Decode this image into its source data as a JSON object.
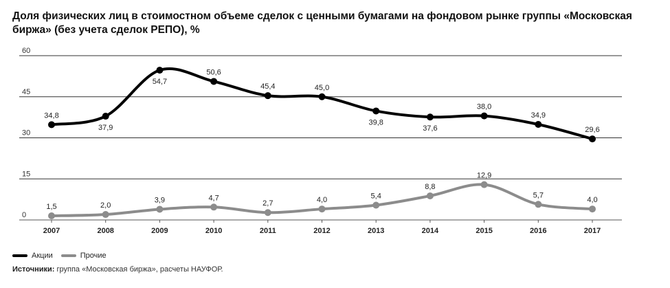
{
  "chart_data": {
    "type": "line",
    "title": "Доля физических лиц в стоимостном объеме сделок с ценными бумагами на фондовом рынке группы «Московская биржа» (без учета сделок РЕПО), %",
    "x": [
      "2007",
      "2008",
      "2009",
      "2010",
      "2011",
      "2012",
      "2013",
      "2014",
      "2015",
      "2016",
      "2017"
    ],
    "ylim": [
      0,
      60
    ],
    "yticks": [
      0,
      15,
      30,
      45,
      60
    ],
    "grid": true,
    "legend_position": "bottom-left",
    "series": [
      {
        "name": "Акции",
        "color": "#000000",
        "values": [
          34.8,
          37.9,
          54.7,
          50.6,
          45.4,
          45.0,
          39.8,
          37.6,
          38.0,
          34.9,
          29.6
        ],
        "labels": [
          "34,8",
          "37,9",
          "54,7",
          "50,6",
          "45,4",
          "45,0",
          "39,8",
          "37,6",
          "38,0",
          "34,9",
          "29,6"
        ]
      },
      {
        "name": "Прочие",
        "color": "#8c8c8c",
        "values": [
          1.5,
          2.0,
          3.9,
          4.7,
          2.7,
          4.0,
          5.4,
          8.8,
          12.9,
          5.7,
          4.0
        ],
        "labels": [
          "1,5",
          "2,0",
          "3,9",
          "4,7",
          "2,7",
          "4,0",
          "5,4",
          "8,8",
          "12,9",
          "5,7",
          "4,0"
        ]
      }
    ]
  },
  "source_label": "Источники:",
  "source_text": " группа «Московская биржа», расчеты НАУФОР."
}
